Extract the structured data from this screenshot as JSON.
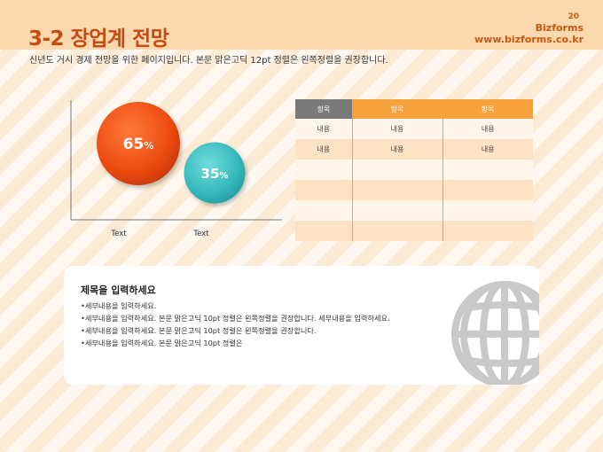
{
  "header": {
    "title": "3-2 장업계 전망",
    "page_number": "20",
    "brand_name": "Bizforms",
    "brand_url": "www.bizforms.co.kr"
  },
  "subtitle": "신년도 거시 경제 전망을 위한 페이지입니다. 본문 맑은고딕 12pt 정렬은 왼쪽정렬을 권장합니다.",
  "chart_data": {
    "type": "bubble",
    "categories": [
      "Text",
      "Text"
    ],
    "values": [
      65,
      35
    ],
    "labels": [
      "65%",
      "35%"
    ],
    "colors": [
      "#f0531c",
      "#3fc2c5"
    ]
  },
  "table": {
    "headers": [
      "항목",
      "항목",
      "항목"
    ],
    "rows": [
      [
        "내용",
        "내용",
        "내용"
      ],
      [
        "내용",
        "내용",
        "내용"
      ],
      [
        "",
        "",
        ""
      ],
      [
        "",
        "",
        ""
      ],
      [
        "",
        "",
        ""
      ],
      [
        "",
        "",
        ""
      ]
    ]
  },
  "note": {
    "title": "제목을 입력하세요",
    "items": [
      "세부내용을 입력하세요.",
      "세부내용을 입력하세요. 본문 맑은고딕 10pt 정렬은 왼쪽정렬을 권장합니다. 세부내용을 입력하세요.",
      "세부내용을 입력하세요. 본문 맑은고딕 10pt 정렬은 왼쪽정렬을 권장합니다.",
      "세부내용을 입력하세요. 본문 맑은고딕 10pt 정렬은"
    ]
  },
  "colors": {
    "accent": "#c84a10",
    "header_band": "#fbd8ad",
    "table_header_gray": "#7a7a7a",
    "table_header_orange": "#f6a13b"
  },
  "icons": [
    "globe-icon"
  ]
}
